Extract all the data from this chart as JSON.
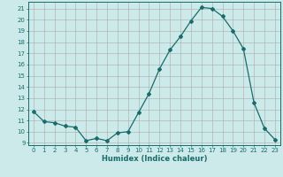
{
  "x": [
    0,
    1,
    2,
    3,
    4,
    5,
    6,
    7,
    8,
    9,
    10,
    11,
    12,
    13,
    14,
    15,
    16,
    17,
    18,
    19,
    20,
    21,
    22,
    23
  ],
  "y": [
    11.8,
    10.9,
    10.8,
    10.5,
    10.4,
    9.2,
    9.4,
    9.2,
    9.9,
    10.0,
    11.7,
    13.4,
    15.6,
    17.3,
    18.5,
    19.9,
    21.1,
    21.0,
    20.3,
    19.0,
    17.4,
    12.6,
    10.3,
    9.3
  ],
  "line_color": "#1a6b6b",
  "marker": "D",
  "markersize": 2.0,
  "linewidth": 0.9,
  "xlabel": "Humidex (Indice chaleur)",
  "ylabel": "",
  "xlim": [
    -0.5,
    23.5
  ],
  "ylim": [
    8.8,
    21.6
  ],
  "yticks": [
    9,
    10,
    11,
    12,
    13,
    14,
    15,
    16,
    17,
    18,
    19,
    20,
    21
  ],
  "xticks": [
    0,
    1,
    2,
    3,
    4,
    5,
    6,
    7,
    8,
    9,
    10,
    11,
    12,
    13,
    14,
    15,
    16,
    17,
    18,
    19,
    20,
    21,
    22,
    23
  ],
  "bg_color": "#cceaea",
  "grid_color": "#aaaaaa",
  "tick_fontsize": 5.0,
  "xlabel_fontsize": 6.0
}
